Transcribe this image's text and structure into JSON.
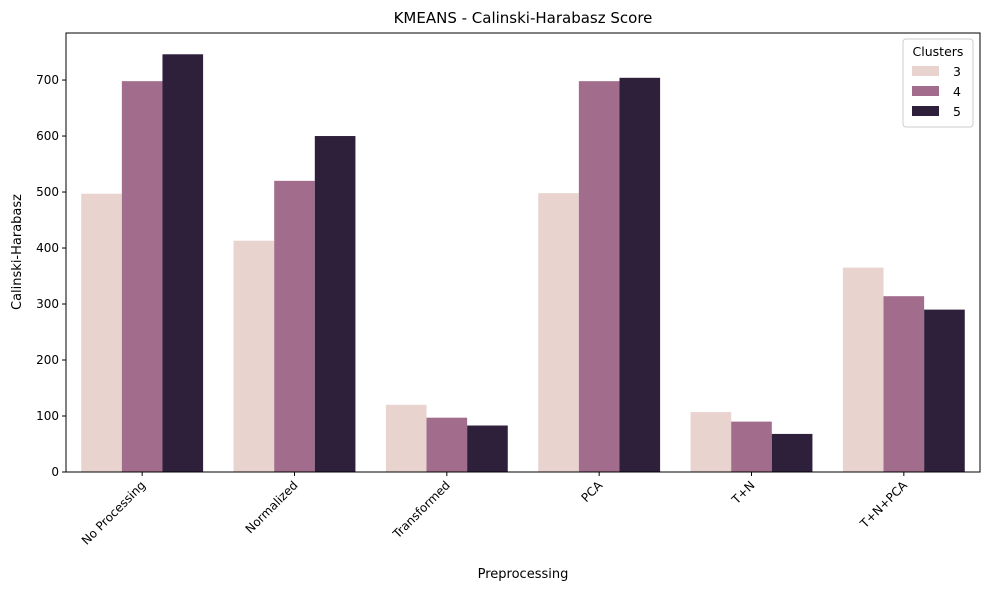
{
  "chart_data": {
    "type": "bar",
    "title": "KMEANS - Calinski-Harabasz Score",
    "xlabel": "Preprocessing",
    "ylabel": "Calinski-Harabasz",
    "categories": [
      "No Processing",
      "Normalized",
      "Transformed",
      "PCA",
      "T+N",
      "T+N+PCA"
    ],
    "series": [
      {
        "name": "3",
        "color": "#e8d3cf",
        "values": [
          497,
          413,
          120,
          498,
          107,
          365
        ]
      },
      {
        "name": "4",
        "color": "#a26d8c",
        "values": [
          698,
          520,
          97,
          698,
          90,
          314
        ]
      },
      {
        "name": "5",
        "color": "#2e1f3b",
        "values": [
          746,
          600,
          83,
          704,
          68,
          290
        ]
      }
    ],
    "ylim": [
      0,
      784
    ],
    "yticks": [
      0,
      100,
      200,
      300,
      400,
      500,
      600,
      700
    ],
    "legend": {
      "title": "Clusters",
      "position": "top-right"
    },
    "grid": false
  }
}
